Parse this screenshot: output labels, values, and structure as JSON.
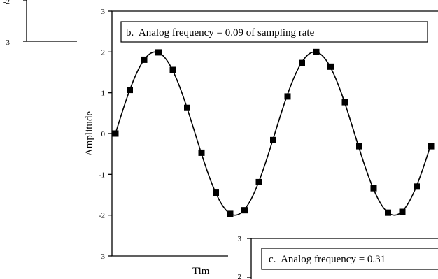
{
  "chart_data": [
    {
      "panel": "a",
      "type": "line",
      "ytick_labels": [
        "-2",
        "-3"
      ],
      "note": "partially visible panel at top-left"
    },
    {
      "panel": "b",
      "type": "line",
      "title": "b.  Analog frequency = 0.09 of sampling rate",
      "ylabel": "Amplitude",
      "xlabel": "Tim",
      "ylim": [
        -3,
        3
      ],
      "ytick_labels": [
        "3",
        "2",
        "1",
        "0",
        "-1",
        "-2",
        "-3"
      ],
      "frequency": 0.09,
      "amplitude": 2,
      "samples": [
        0,
        1.07,
        1.81,
        1.99,
        1.56,
        0.63,
        -0.47,
        -1.45,
        -1.97,
        -1.88,
        -1.19,
        -0.16,
        0.91,
        1.73,
        2.0,
        1.64,
        0.77,
        -0.31,
        -1.34,
        -1.94,
        -1.92,
        -1.3,
        -0.31
      ]
    },
    {
      "panel": "c",
      "type": "line",
      "title": "c.  Analog frequency = 0.31",
      "ytick_labels": [
        "3",
        "2"
      ],
      "note": "partially visible panel at bottom-right"
    }
  ]
}
